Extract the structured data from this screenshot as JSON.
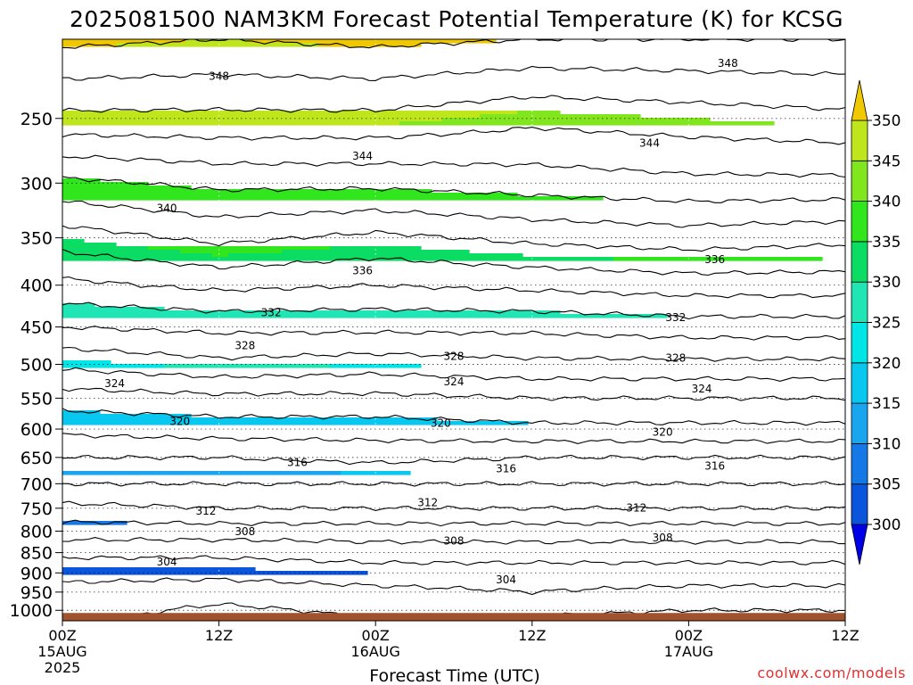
{
  "chart_data": {
    "type": "heatmap",
    "title": "2025081500 NAM3KM Forecast Potential Temperature (K) for KCSG",
    "xlabel": "Forecast Time (UTC)",
    "ylabel": "",
    "watermark": "coolwx.com/models",
    "x_ticks": [
      {
        "hour": 0,
        "label": "00Z",
        "sub1": "15AUG",
        "sub2": "2025"
      },
      {
        "hour": 12,
        "label": "12Z",
        "sub1": "",
        "sub2": ""
      },
      {
        "hour": 24,
        "label": "00Z",
        "sub1": "16AUG",
        "sub2": ""
      },
      {
        "hour": 36,
        "label": "12Z",
        "sub1": "",
        "sub2": ""
      },
      {
        "hour": 48,
        "label": "00Z",
        "sub1": "17AUG",
        "sub2": ""
      },
      {
        "hour": 60,
        "label": "12Z",
        "sub1": "",
        "sub2": ""
      }
    ],
    "xlim": [
      0,
      60
    ],
    "y_scale": "log",
    "y_ticks": [
      250,
      300,
      350,
      400,
      450,
      500,
      550,
      600,
      650,
      700,
      750,
      800,
      850,
      900,
      950,
      1000
    ],
    "ylim": [
      1030,
      200
    ],
    "grid": true,
    "colorbar": {
      "levels": [
        300,
        305,
        310,
        315,
        320,
        325,
        330,
        335,
        340,
        345,
        350
      ],
      "labels": [
        "300",
        "305",
        "310",
        "315",
        "320",
        "325",
        "330",
        "335",
        "340",
        "345",
        "350"
      ],
      "colors": [
        "#0000e6",
        "#0a55dc",
        "#1478e6",
        "#1aa5ef",
        "#08c8ef",
        "#00e6e6",
        "#1fe6b4",
        "#0adc64",
        "#32e61e",
        "#82e61e",
        "#bfe61c",
        "#fafa00",
        "#f0c800"
      ]
    },
    "contour_step_K": 2,
    "profile_hours": [
      0,
      12,
      24,
      36,
      48,
      60
    ],
    "profiles": [
      {
        "pressure": 1000,
        "theta": [
          303.0,
          301.5,
          302.5,
          302.5,
          302.0,
          302.0
        ]
      },
      {
        "pressure": 950,
        "theta": [
          303.5,
          303.0,
          303.5,
          304.0,
          303.5,
          303.5
        ]
      },
      {
        "pressure": 900,
        "theta": [
          304.5,
          304.5,
          305.0,
          305.0,
          305.0,
          305.0
        ]
      },
      {
        "pressure": 850,
        "theta": [
          306.5,
          306.5,
          307.0,
          307.0,
          307.0,
          307.0
        ]
      },
      {
        "pressure": 800,
        "theta": [
          309.0,
          309.0,
          309.0,
          309.0,
          309.0,
          309.0
        ]
      },
      {
        "pressure": 750,
        "theta": [
          311.5,
          312.0,
          312.0,
          312.0,
          312.0,
          312.0
        ]
      },
      {
        "pressure": 700,
        "theta": [
          314.0,
          314.0,
          314.0,
          314.0,
          314.0,
          314.0
        ]
      },
      {
        "pressure": 650,
        "theta": [
          316.0,
          316.0,
          316.5,
          316.0,
          316.0,
          316.0
        ]
      },
      {
        "pressure": 600,
        "theta": [
          318.5,
          319.0,
          319.0,
          319.5,
          319.5,
          319.5
        ]
      },
      {
        "pressure": 550,
        "theta": [
          321.0,
          321.5,
          321.5,
          322.0,
          322.0,
          322.0
        ]
      },
      {
        "pressure": 500,
        "theta": [
          324.5,
          325.5,
          325.0,
          325.5,
          325.5,
          325.5
        ]
      },
      {
        "pressure": 450,
        "theta": [
          328.0,
          328.5,
          328.5,
          328.5,
          329.0,
          329.0
        ]
      },
      {
        "pressure": 400,
        "theta": [
          331.5,
          332.5,
          332.0,
          332.5,
          333.0,
          333.0
        ]
      },
      {
        "pressure": 350,
        "theta": [
          335.0,
          336.5,
          335.5,
          336.5,
          337.0,
          336.5
        ]
      },
      {
        "pressure": 300,
        "theta": [
          339.5,
          340.5,
          340.5,
          341.0,
          341.5,
          341.5
        ]
      },
      {
        "pressure": 250,
        "theta": [
          345.5,
          345.5,
          345.5,
          344.5,
          345.0,
          345.5
        ]
      },
      {
        "pressure": 200,
        "theta": [
          350.5,
          350.0,
          350.5,
          350.0,
          350.0,
          350.0
        ]
      }
    ],
    "contour_labels": [
      {
        "text": "348",
        "hour": 12,
        "pressure": 222
      },
      {
        "text": "348",
        "hour": 51,
        "pressure": 214
      },
      {
        "text": "344",
        "hour": 23,
        "pressure": 278
      },
      {
        "text": "344",
        "hour": 45,
        "pressure": 268
      },
      {
        "text": "340",
        "hour": 8,
        "pressure": 322
      },
      {
        "text": "336",
        "hour": 23,
        "pressure": 384
      },
      {
        "text": "336",
        "hour": 50,
        "pressure": 372
      },
      {
        "text": "332",
        "hour": 16,
        "pressure": 432
      },
      {
        "text": "332",
        "hour": 47,
        "pressure": 438
      },
      {
        "text": "328",
        "hour": 14,
        "pressure": 474
      },
      {
        "text": "328",
        "hour": 30,
        "pressure": 489
      },
      {
        "text": "328",
        "hour": 47,
        "pressure": 491
      },
      {
        "text": "324",
        "hour": 4,
        "pressure": 528
      },
      {
        "text": "324",
        "hour": 30,
        "pressure": 525
      },
      {
        "text": "324",
        "hour": 49,
        "pressure": 536
      },
      {
        "text": "320",
        "hour": 9,
        "pressure": 587
      },
      {
        "text": "320",
        "hour": 29,
        "pressure": 590
      },
      {
        "text": "320",
        "hour": 46,
        "pressure": 605
      },
      {
        "text": "316",
        "hour": 18,
        "pressure": 659
      },
      {
        "text": "316",
        "hour": 34,
        "pressure": 671
      },
      {
        "text": "316",
        "hour": 50,
        "pressure": 666
      },
      {
        "text": "312",
        "hour": 11,
        "pressure": 756
      },
      {
        "text": "312",
        "hour": 28,
        "pressure": 738
      },
      {
        "text": "312",
        "hour": 44,
        "pressure": 749
      },
      {
        "text": "308",
        "hour": 14,
        "pressure": 801
      },
      {
        "text": "308",
        "hour": 30,
        "pressure": 822
      },
      {
        "text": "308",
        "hour": 46,
        "pressure": 815
      },
      {
        "text": "304",
        "hour": 8,
        "pressure": 872
      },
      {
        "text": "304",
        "hour": 34,
        "pressure": 918
      }
    ]
  }
}
